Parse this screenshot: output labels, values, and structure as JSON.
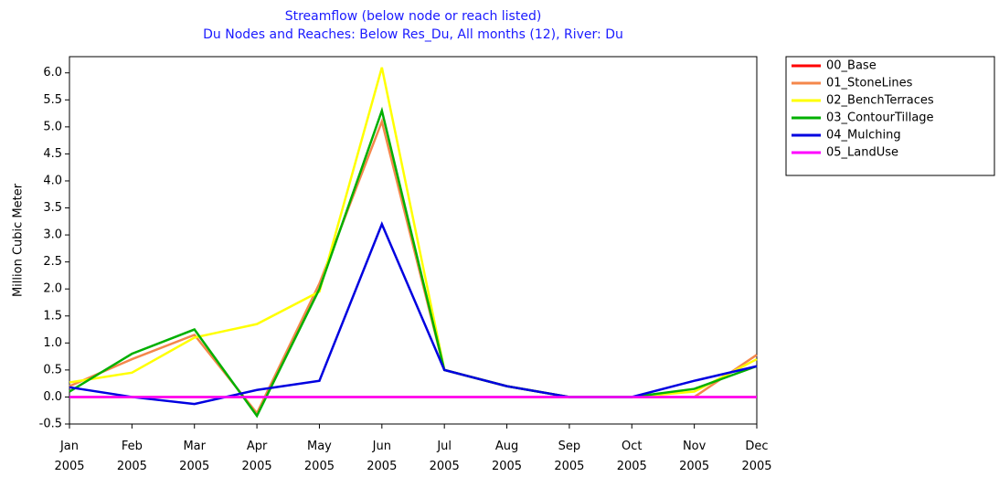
{
  "chart_data": {
    "type": "line",
    "title": "Streamflow (below node or reach listed)",
    "subtitle": "Du Nodes and Reaches: Below Res_Du,  All months (12),  River: Du",
    "y_label": "Million Cubic Meter",
    "categories": [
      "Jan 2005",
      "Feb 2005",
      "Mar 2005",
      "Apr 2005",
      "May 2005",
      "Jun 2005",
      "Jul 2005",
      "Aug 2005",
      "Sep 2005",
      "Oct 2005",
      "Nov 2005",
      "Dec 2005"
    ],
    "series": [
      {
        "name": "00_Base",
        "color": "#ff0000",
        "values": [
          0,
          0,
          0,
          0,
          0,
          0,
          0,
          0,
          0,
          0,
          0,
          0
        ]
      },
      {
        "name": "01_StoneLines",
        "color": "#f4874b",
        "values": [
          0.2,
          0.7,
          1.15,
          -0.3,
          2.1,
          5.1,
          0.5,
          0.2,
          0,
          0,
          0,
          0.78
        ]
      },
      {
        "name": "02_BenchTerraces",
        "color": "#ffff00",
        "values": [
          0.27,
          0.45,
          1.1,
          1.35,
          1.95,
          6.1,
          0.5,
          0.2,
          0,
          0,
          0.1,
          0.7
        ]
      },
      {
        "name": "03_ContourTillage",
        "color": "#00b000",
        "values": [
          0.1,
          0.8,
          1.25,
          -0.35,
          2.0,
          5.3,
          0.5,
          0.2,
          0,
          0,
          0.15,
          0.57
        ]
      },
      {
        "name": "04_Mulching",
        "color": "#0000e0",
        "values": [
          0.18,
          0,
          -0.13,
          0.13,
          0.3,
          3.2,
          0.5,
          0.2,
          0,
          0,
          0.3,
          0.57
        ]
      },
      {
        "name": "05_LandUse",
        "color": "#ff00ff",
        "values": [
          0,
          0,
          0,
          0,
          0,
          0,
          0,
          0,
          0,
          0,
          0,
          0
        ]
      }
    ],
    "ylim": [
      -0.5,
      6.3
    ],
    "yticks": [
      -0.5,
      {
        "value": 0,
        "label": "0.0"
      },
      0.5,
      {
        "value": 1,
        "label": "1.0"
      },
      1.5,
      {
        "value": 2,
        "label": "2.0"
      },
      2.5,
      {
        "value": 3,
        "label": "3.0"
      },
      3.5,
      {
        "value": 4,
        "label": "4.0"
      },
      4.5,
      {
        "value": 5,
        "label": "5.0"
      },
      5.5,
      {
        "value": 6,
        "label": "6.0"
      }
    ],
    "legend": "right"
  }
}
